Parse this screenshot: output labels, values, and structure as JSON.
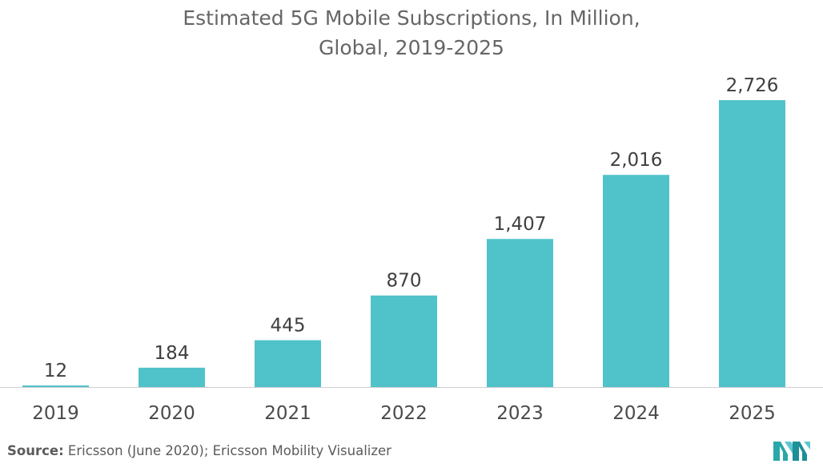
{
  "chart_data": {
    "type": "bar",
    "title_line1": "Estimated 5G Mobile Subscriptions, In Million,",
    "title_line2": "Global, 2019-2025",
    "categories": [
      "2019",
      "2020",
      "2021",
      "2022",
      "2023",
      "2024",
      "2025"
    ],
    "values": [
      12,
      184,
      445,
      870,
      1407,
      2016,
      2726
    ],
    "value_labels": [
      "12",
      "184",
      "445",
      "870",
      "1,407",
      "2,016",
      "2,726"
    ],
    "ylim": [
      0,
      2726
    ],
    "xlabel": "",
    "ylabel": "",
    "grid": false,
    "bar_color": "#50c2ca",
    "axis_color": "#d0d0d0"
  },
  "footer": {
    "source_label": "Source:",
    "source_text": " Ericsson (June 2020); Ericsson Mobility Visualizer"
  }
}
